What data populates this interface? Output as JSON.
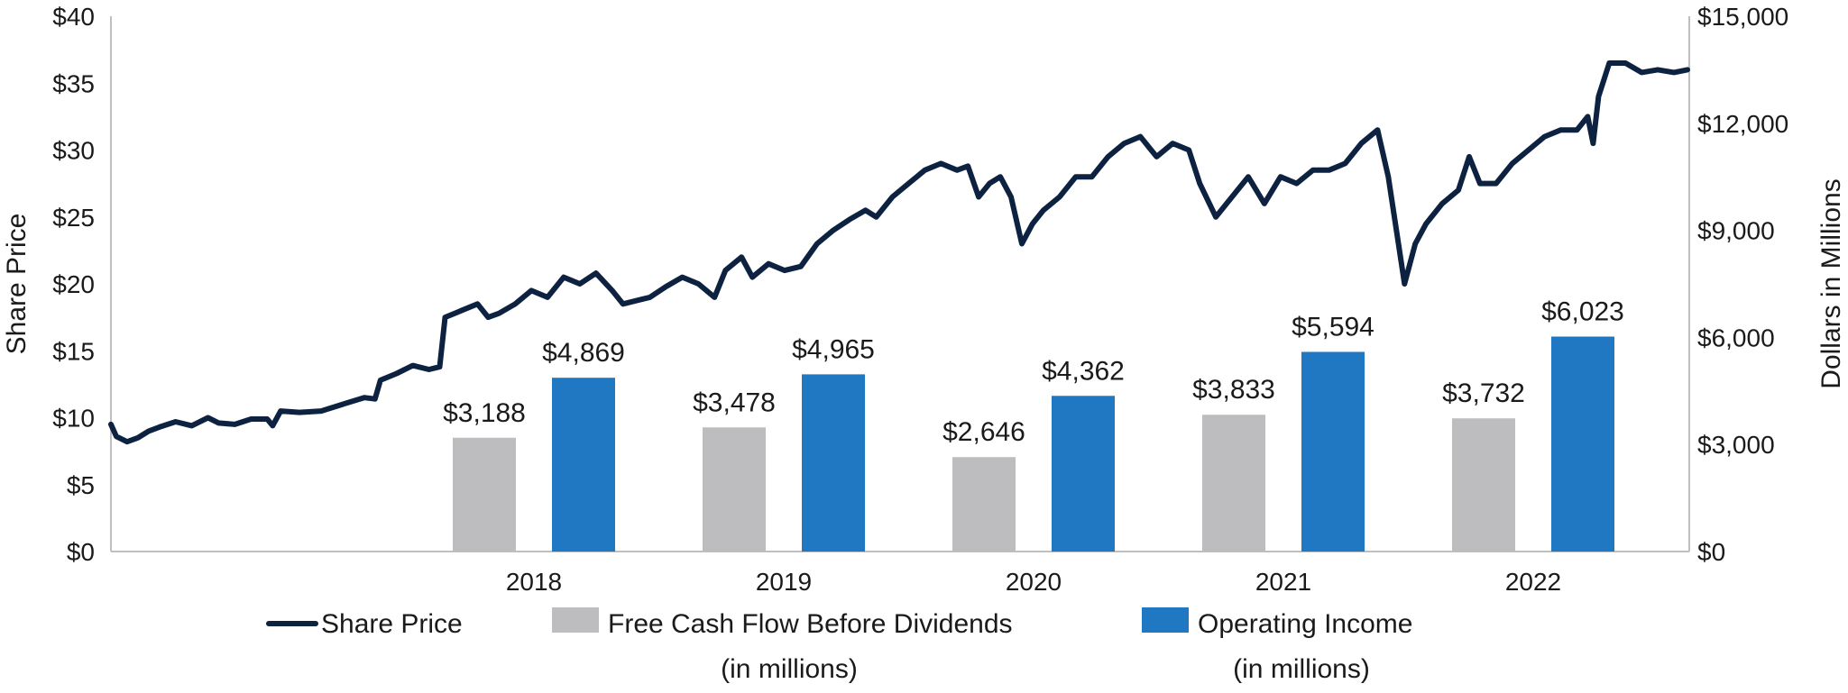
{
  "chart_data": {
    "type": "bar+line",
    "categories": [
      "2018",
      "2019",
      "2020",
      "2021",
      "2022"
    ],
    "series": [
      {
        "name": "Free Cash Flow Before Dividends",
        "name_line2": "(in millions)",
        "axis": "right",
        "type": "bar",
        "color": "#bdbdbf",
        "values": [
          3188,
          3478,
          2646,
          3833,
          3732
        ],
        "labels": [
          "$3,188",
          "$3,478",
          "$2,646",
          "$3,833",
          "$3,732"
        ]
      },
      {
        "name": "Operating Income",
        "name_line2": "(in millions)",
        "axis": "right",
        "type": "bar",
        "color": "#1f78c1",
        "values": [
          4869,
          4965,
          4362,
          5594,
          6023
        ],
        "labels": [
          "$4,869",
          "$4,965",
          "$4,362",
          "$5,594",
          "$6,023"
        ]
      },
      {
        "name": "Share Price",
        "axis": "left",
        "type": "line",
        "color": "#0d2240",
        "x_range": [
          2017.0,
          2022.85
        ],
        "points": [
          [
            2017.0,
            9.5
          ],
          [
            2017.02,
            8.6
          ],
          [
            2017.06,
            8.2
          ],
          [
            2017.1,
            8.5
          ],
          [
            2017.14,
            9.0
          ],
          [
            2017.18,
            9.3
          ],
          [
            2017.24,
            9.7
          ],
          [
            2017.3,
            9.4
          ],
          [
            2017.36,
            10.0
          ],
          [
            2017.4,
            9.6
          ],
          [
            2017.46,
            9.5
          ],
          [
            2017.52,
            9.9
          ],
          [
            2017.58,
            9.9
          ],
          [
            2017.6,
            9.4
          ],
          [
            2017.63,
            10.5
          ],
          [
            2017.7,
            10.4
          ],
          [
            2017.78,
            10.5
          ],
          [
            2017.86,
            11.0
          ],
          [
            2017.94,
            11.5
          ],
          [
            2017.98,
            11.4
          ],
          [
            2018.0,
            12.8
          ],
          [
            2018.06,
            13.3
          ],
          [
            2018.12,
            13.9
          ],
          [
            2018.18,
            13.6
          ],
          [
            2018.22,
            13.8
          ],
          [
            2018.24,
            17.5
          ],
          [
            2018.3,
            18.0
          ],
          [
            2018.36,
            18.5
          ],
          [
            2018.4,
            17.5
          ],
          [
            2018.44,
            17.8
          ],
          [
            2018.5,
            18.5
          ],
          [
            2018.56,
            19.5
          ],
          [
            2018.62,
            19.0
          ],
          [
            2018.68,
            20.5
          ],
          [
            2018.74,
            20.0
          ],
          [
            2018.8,
            20.8
          ],
          [
            2018.86,
            19.5
          ],
          [
            2018.9,
            18.5
          ],
          [
            2018.96,
            18.8
          ],
          [
            2019.0,
            19.0
          ],
          [
            2019.06,
            19.8
          ],
          [
            2019.12,
            20.5
          ],
          [
            2019.18,
            20.0
          ],
          [
            2019.24,
            19.0
          ],
          [
            2019.28,
            21.0
          ],
          [
            2019.34,
            22.0
          ],
          [
            2019.38,
            20.5
          ],
          [
            2019.44,
            21.5
          ],
          [
            2019.5,
            21.0
          ],
          [
            2019.56,
            21.3
          ],
          [
            2019.62,
            23.0
          ],
          [
            2019.68,
            24.0
          ],
          [
            2019.74,
            24.8
          ],
          [
            2019.8,
            25.5
          ],
          [
            2019.84,
            25.0
          ],
          [
            2019.9,
            26.5
          ],
          [
            2019.96,
            27.5
          ],
          [
            2020.02,
            28.5
          ],
          [
            2020.08,
            29.0
          ],
          [
            2020.14,
            28.5
          ],
          [
            2020.18,
            28.8
          ],
          [
            2020.22,
            26.5
          ],
          [
            2020.26,
            27.5
          ],
          [
            2020.3,
            28.0
          ],
          [
            2020.34,
            26.5
          ],
          [
            2020.38,
            23.0
          ],
          [
            2020.42,
            24.5
          ],
          [
            2020.46,
            25.5
          ],
          [
            2020.52,
            26.5
          ],
          [
            2020.58,
            28.0
          ],
          [
            2020.64,
            28.0
          ],
          [
            2020.7,
            29.5
          ],
          [
            2020.76,
            30.5
          ],
          [
            2020.82,
            31.0
          ],
          [
            2020.88,
            29.5
          ],
          [
            2020.94,
            30.5
          ],
          [
            2021.0,
            30.0
          ],
          [
            2021.04,
            27.5
          ],
          [
            2021.1,
            25.0
          ],
          [
            2021.16,
            26.5
          ],
          [
            2021.22,
            28.0
          ],
          [
            2021.28,
            26.0
          ],
          [
            2021.34,
            28.0
          ],
          [
            2021.4,
            27.5
          ],
          [
            2021.46,
            28.5
          ],
          [
            2021.52,
            28.5
          ],
          [
            2021.58,
            29.0
          ],
          [
            2021.64,
            30.5
          ],
          [
            2021.7,
            31.5
          ],
          [
            2021.74,
            28.0
          ],
          [
            2021.77,
            24.0
          ],
          [
            2021.8,
            20.0
          ],
          [
            2021.84,
            23.0
          ],
          [
            2021.88,
            24.5
          ],
          [
            2021.94,
            26.0
          ],
          [
            2022.0,
            27.0
          ],
          [
            2022.04,
            29.5
          ],
          [
            2022.08,
            27.5
          ],
          [
            2022.14,
            27.5
          ],
          [
            2022.2,
            29.0
          ],
          [
            2022.26,
            30.0
          ],
          [
            2022.32,
            31.0
          ],
          [
            2022.38,
            31.5
          ],
          [
            2022.44,
            31.5
          ],
          [
            2022.48,
            32.5
          ],
          [
            2022.5,
            30.5
          ],
          [
            2022.52,
            34.0
          ],
          [
            2022.56,
            36.5
          ],
          [
            2022.62,
            36.5
          ],
          [
            2022.68,
            35.8
          ],
          [
            2022.74,
            36.0
          ],
          [
            2022.8,
            35.8
          ],
          [
            2022.85,
            36.0
          ]
        ]
      }
    ],
    "y_left": {
      "label": "Share Price",
      "range": [
        0,
        40
      ],
      "ticks": [
        0,
        5,
        10,
        15,
        20,
        25,
        30,
        35,
        40
      ],
      "tick_labels": [
        "$0",
        "$5",
        "$10",
        "$15",
        "$20",
        "$25",
        "$30",
        "$35",
        "$40"
      ]
    },
    "y_right": {
      "label": "Dollars in Millions",
      "range": [
        0,
        15000
      ],
      "ticks": [
        0,
        3000,
        6000,
        9000,
        12000,
        15000
      ],
      "tick_labels": [
        "$0",
        "$3,000",
        "$6,000",
        "$9,000",
        "$12,000",
        "$15,000"
      ]
    },
    "legend": [
      {
        "label": "Share Price",
        "label_line2": "",
        "kind": "line",
        "color": "#0d2240"
      },
      {
        "label": "Free Cash Flow Before Dividends",
        "label_line2": "(in millions)",
        "kind": "box",
        "color": "#bdbdbf"
      },
      {
        "label": "Operating Income",
        "label_line2": "(in millions)",
        "kind": "box",
        "color": "#1f78c1"
      }
    ],
    "legend_position": "bottom",
    "grid": false
  }
}
